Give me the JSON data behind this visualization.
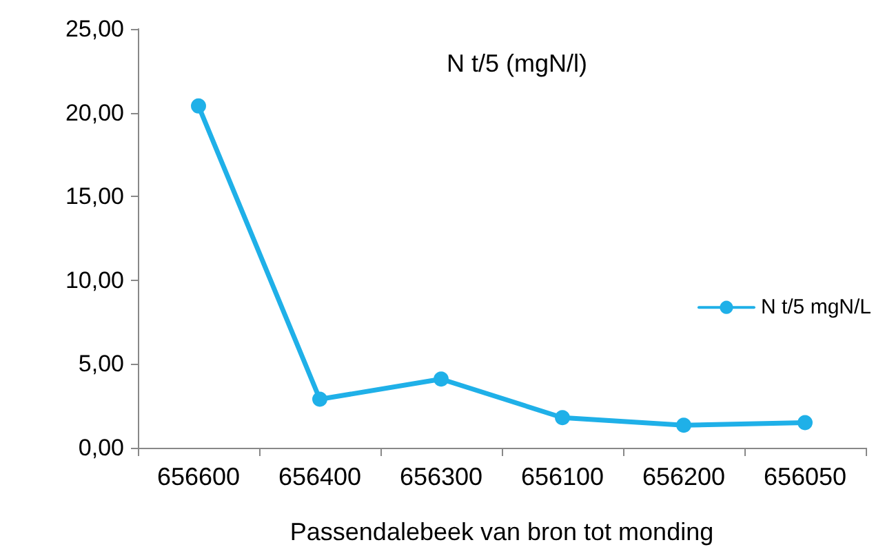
{
  "chart_data": {
    "type": "line",
    "title": "N t/5 (mgN/l)",
    "xlabel": "Passendalebeek van bron tot monding",
    "categories": [
      "656600",
      "656400",
      "656300",
      "656100",
      "656200",
      "656050"
    ],
    "series": [
      {
        "name": "N t/5 mgN/L",
        "color": "#1fb0e8",
        "values": [
          20.4,
          2.9,
          4.1,
          1.8,
          1.35,
          1.5
        ]
      }
    ],
    "ylim": [
      0,
      25
    ],
    "yticks": [
      {
        "value": 0,
        "label": "0,00"
      },
      {
        "value": 5,
        "label": "5,00"
      },
      {
        "value": 10,
        "label": "10,00"
      },
      {
        "value": 15,
        "label": "15,00"
      },
      {
        "value": 20,
        "label": "20,00"
      },
      {
        "value": 25,
        "label": "25,00"
      }
    ],
    "grid": false,
    "legend": "right",
    "marker": "circle",
    "line_style": "solid"
  }
}
